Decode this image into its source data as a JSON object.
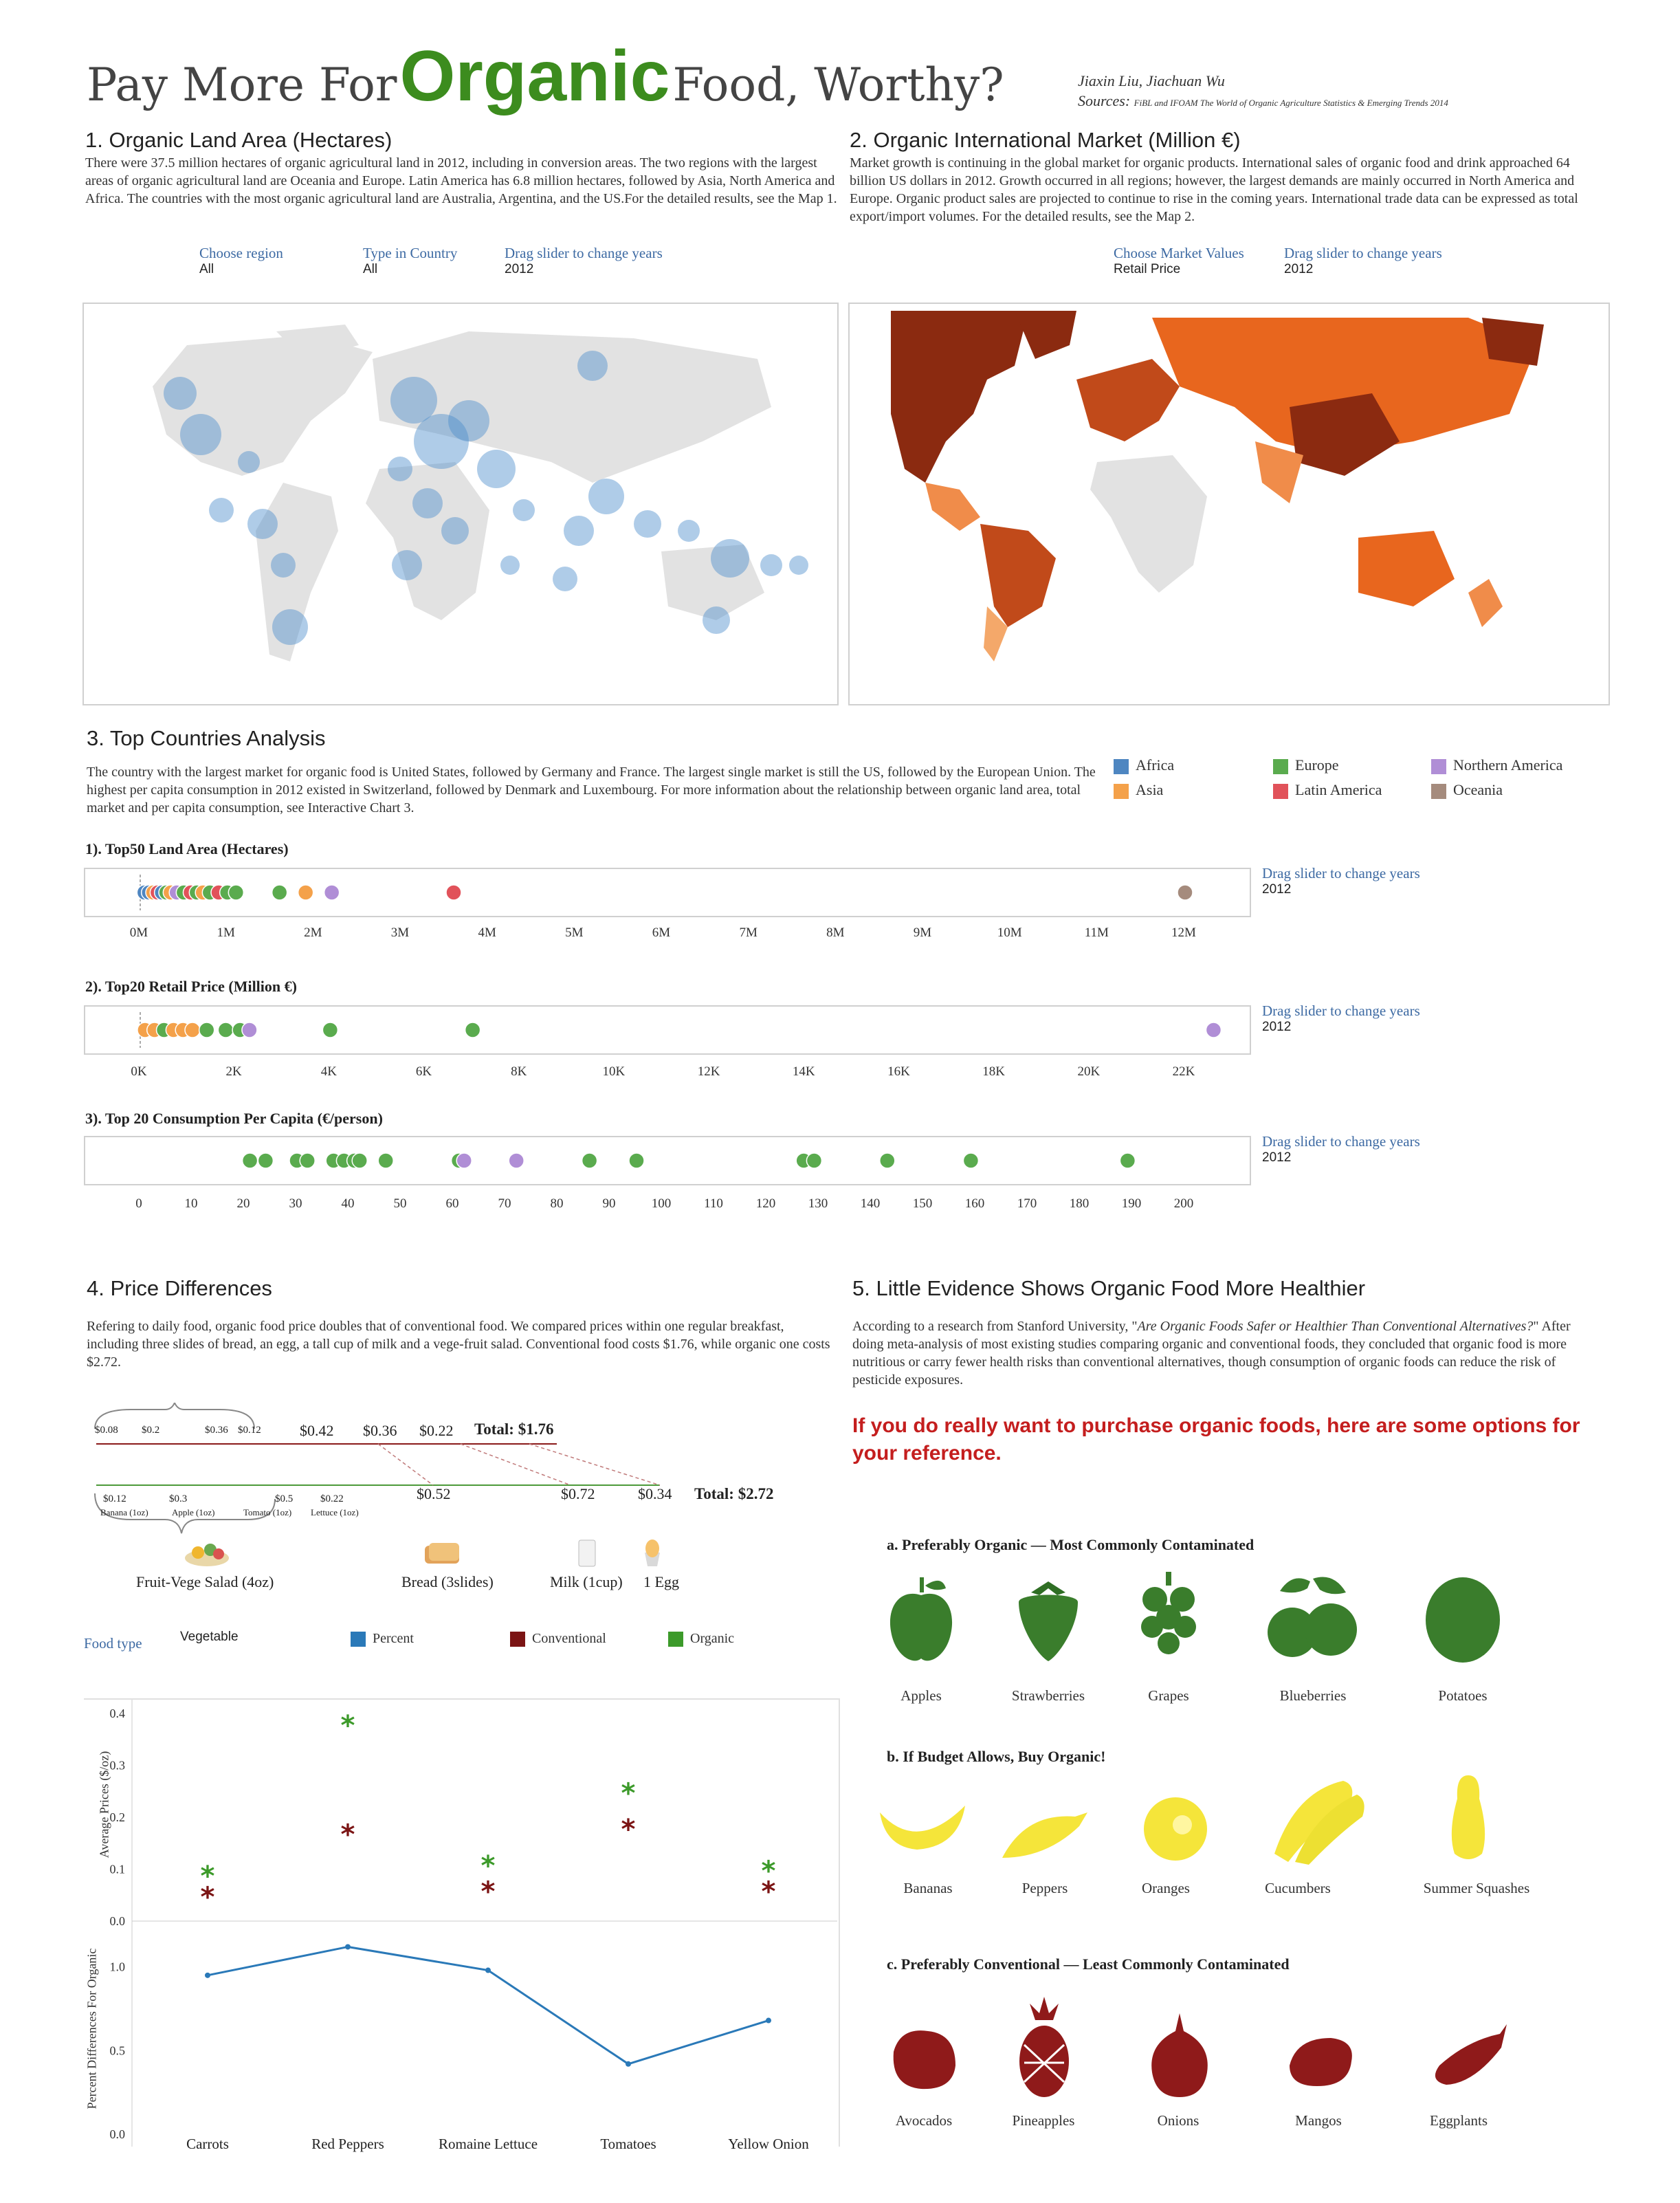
{
  "header": {
    "title_pre": "Pay More For",
    "title_key": "Organic",
    "title_post": "Food, Worthy?",
    "authors": "Jiaxin Liu, Jiachuan Wu",
    "sources_label": "Sources:",
    "sources_text": "FiBL and IFOAM The World of Organic Agriculture Statistics & Emerging Trends 2014"
  },
  "colors": {
    "title_green": "#3c8c1e",
    "blue_bubble": "#4e8fcc",
    "africa": "#4e86c1",
    "asia": "#f4a14a",
    "europe": "#5aab4e",
    "latin_america": "#e1525a",
    "northern_america": "#b08ed6",
    "oceania": "#a58b7d",
    "conventional": "#7b1414",
    "organic": "#3c9a2a",
    "percent": "#2a79b8",
    "red_callout": "#c41e1e"
  },
  "section1": {
    "heading": "1. Organic Land Area (Hectares)",
    "text": "There were 37.5 million hectares of organic agricultural land in 2012, including in conversion areas. The two regions with the largest areas of organic agricultural land are Oceania and Europe. Latin America has 6.8 million hectares, followed by Asia, North America and Africa. The countries with the most organic agricultural land are Australia, Argentina, and the US.For the detailed results, see the Map 1.",
    "controls": [
      {
        "label": "Choose region",
        "value": "All"
      },
      {
        "label": "Type in Country",
        "value": "All"
      },
      {
        "label": "Drag slider to change years",
        "value": "2012"
      }
    ]
  },
  "section2": {
    "heading": "2. Organic International Market (Million €)",
    "text": "Market growth is continuing in the global market for organic products. International sales of organic food and drink approached 64 billion US dollars in 2012. Growth occurred in all regions; however, the largest demands are mainly occurred in North America and Europe. Organic product sales are projected to continue to rise in the coming years. International trade data can be expressed as total export/import volumes. For the detailed results, see the Map 2.",
    "controls": [
      {
        "label": "Choose Market Values",
        "value": "Retail Price"
      },
      {
        "label": "Drag slider to change years",
        "value": "2012"
      }
    ]
  },
  "section3": {
    "heading": "3. Top Countries Analysis",
    "text": "The country with the largest market for organic food is United States, followed by Germany and France. The largest single market is still the US, followed by the European Union. The highest per capita consumption in 2012 existed in Switzerland, followed by Denmark and Luxembourg. For more information about the relationship between organic land area, total market and per capita consumption, see Interactive Chart 3.",
    "legend": [
      "Africa",
      "Asia",
      "Europe",
      "Latin America",
      "Northern America",
      "Oceania"
    ],
    "slider_label": "Drag slider to change years",
    "slider_value": "2012"
  },
  "section4": {
    "heading": "4. Price Differences",
    "text": "Refering to daily food, organic food price doubles that of conventional food. We compared prices within one regular breakfast, including three slides of bread, an egg, a tall cup of milk and a vege-fruit salad. Conventional food costs $1.76, while organic one costs $2.72.",
    "conv_small": [
      "$0.08",
      "$0.2",
      "$0.36",
      "$0.12"
    ],
    "conv_big": [
      "$0.42",
      "$0.36",
      "$0.22"
    ],
    "conv_total": "Total: $1.76",
    "org_small": [
      "$0.12",
      "$0.3",
      "$0.5",
      "$0.22"
    ],
    "org_small_items": [
      "Banana (1oz)",
      "Apple (1oz)",
      "Tomato (1oz)",
      "Lettuce (1oz)"
    ],
    "org_big": [
      "$0.52",
      "$0.72",
      "$0.34"
    ],
    "org_total": "Total: $2.72",
    "items": [
      "Fruit-Vege Salad (4oz)",
      "Bread (3slides)",
      "Milk (1cup)",
      "1 Egg"
    ],
    "food_type_label": "Food type",
    "food_type_value": "Vegetable",
    "legend": [
      "Percent",
      "Conventional",
      "Organic"
    ]
  },
  "section5": {
    "heading": "5. Little Evidence Shows Organic Food More Healthier",
    "text_pre": "According to a research from Stanford University, \"",
    "text_italic": "Are Organic Foods Safer or Healthier Than Conventional Alternatives?",
    "text_post": "\" After doing meta-analysis of most existing studies comparing organic and conventional foods, they concluded that organic food is more nutritious or carry fewer health risks than conventional alternatives, though consumption of organic foods can reduce the risk of pesticide exposures.",
    "callout": "If you do really want to purchase organic foods, here are some options for your reference.",
    "groups": [
      {
        "title": "a. Preferably Organic — Most Commonly Contaminated",
        "items": [
          "Apples",
          "Strawberries",
          "Grapes",
          "Blueberries",
          "Potatoes"
        ]
      },
      {
        "title": "b. If Budget Allows, Buy Organic!",
        "items": [
          "Bananas",
          "Peppers",
          "Oranges",
          "Cucumbers",
          "Summer Squashes"
        ]
      },
      {
        "title": "c. Preferably Conventional — Least Commonly Contaminated",
        "items": [
          "Avocados",
          "Pineapples",
          "Onions",
          "Mangos",
          "Eggplants"
        ]
      }
    ]
  },
  "chart_data": [
    {
      "type": "scatter",
      "title": "1). Top50 Land Area (Hectares)",
      "xlim": [
        0,
        12
      ],
      "tick_labels": [
        "0M",
        "1M",
        "2M",
        "3M",
        "4M",
        "5M",
        "6M",
        "7M",
        "8M",
        "9M",
        "10M",
        "11M",
        "12M"
      ],
      "points": [
        {
          "x": 0.05,
          "region": "Africa"
        },
        {
          "x": 0.1,
          "region": "Africa"
        },
        {
          "x": 0.15,
          "region": "Asia"
        },
        {
          "x": 0.2,
          "region": "Latin America"
        },
        {
          "x": 0.25,
          "region": "Africa"
        },
        {
          "x": 0.3,
          "region": "Europe"
        },
        {
          "x": 0.35,
          "region": "Asia"
        },
        {
          "x": 0.42,
          "region": "Northern America"
        },
        {
          "x": 0.5,
          "region": "Europe"
        },
        {
          "x": 0.58,
          "region": "Latin America"
        },
        {
          "x": 0.65,
          "region": "Europe"
        },
        {
          "x": 0.72,
          "region": "Asia"
        },
        {
          "x": 0.8,
          "region": "Europe"
        },
        {
          "x": 0.9,
          "region": "Latin America"
        },
        {
          "x": 1.0,
          "region": "Europe"
        },
        {
          "x": 1.1,
          "region": "Europe"
        },
        {
          "x": 1.6,
          "region": "Europe"
        },
        {
          "x": 1.9,
          "region": "Asia"
        },
        {
          "x": 2.2,
          "region": "Northern America"
        },
        {
          "x": 3.6,
          "region": "Latin America"
        },
        {
          "x": 12.0,
          "region": "Oceania"
        }
      ]
    },
    {
      "type": "scatter",
      "title": "2). Top20 Retail Price (Million €)",
      "xlim": [
        0,
        22
      ],
      "tick_labels": [
        "0K",
        "2K",
        "4K",
        "6K",
        "8K",
        "10K",
        "12K",
        "14K",
        "16K",
        "18K",
        "20K",
        "22K"
      ],
      "points": [
        {
          "x": 0.1,
          "region": "Asia"
        },
        {
          "x": 0.3,
          "region": "Asia"
        },
        {
          "x": 0.5,
          "region": "Europe"
        },
        {
          "x": 0.7,
          "region": "Asia"
        },
        {
          "x": 0.9,
          "region": "Asia"
        },
        {
          "x": 1.1,
          "region": "Asia"
        },
        {
          "x": 1.4,
          "region": "Europe"
        },
        {
          "x": 1.8,
          "region": "Europe"
        },
        {
          "x": 2.1,
          "region": "Europe"
        },
        {
          "x": 2.3,
          "region": "Northern America"
        },
        {
          "x": 4.0,
          "region": "Europe"
        },
        {
          "x": 7.0,
          "region": "Europe"
        },
        {
          "x": 22.6,
          "region": "Northern America"
        }
      ]
    },
    {
      "type": "scatter",
      "title": "3). Top 20 Consumption Per Capita (€/person)",
      "xlim": [
        0,
        200
      ],
      "tick_labels": [
        "0",
        "10",
        "20",
        "30",
        "40",
        "50",
        "60",
        "70",
        "80",
        "90",
        "100",
        "110",
        "120",
        "130",
        "140",
        "150",
        "160",
        "170",
        "180",
        "190",
        "200"
      ],
      "points": [
        {
          "x": 21,
          "region": "Europe"
        },
        {
          "x": 24,
          "region": "Europe"
        },
        {
          "x": 30,
          "region": "Europe"
        },
        {
          "x": 32,
          "region": "Europe"
        },
        {
          "x": 37,
          "region": "Europe"
        },
        {
          "x": 39,
          "region": "Europe"
        },
        {
          "x": 41,
          "region": "Europe"
        },
        {
          "x": 42,
          "region": "Europe"
        },
        {
          "x": 47,
          "region": "Europe"
        },
        {
          "x": 61,
          "region": "Europe"
        },
        {
          "x": 62,
          "region": "Northern America"
        },
        {
          "x": 72,
          "region": "Northern America"
        },
        {
          "x": 86,
          "region": "Europe"
        },
        {
          "x": 95,
          "region": "Europe"
        },
        {
          "x": 127,
          "region": "Europe"
        },
        {
          "x": 129,
          "region": "Europe"
        },
        {
          "x": 143,
          "region": "Europe"
        },
        {
          "x": 159,
          "region": "Europe"
        },
        {
          "x": 189,
          "region": "Europe"
        }
      ]
    },
    {
      "type": "scatter",
      "title": "",
      "ylabel": "Average Prices ($/oz)",
      "ylim": [
        0,
        0.4
      ],
      "y_ticks": [
        "0.0",
        "0.1",
        "0.2",
        "0.3",
        "0.4"
      ],
      "categories": [
        "Carrots",
        "Red Peppers",
        "Romaine Lettuce",
        "Tomatoes",
        "Yellow Onion"
      ],
      "series": [
        {
          "name": "Conventional",
          "values": [
            0.05,
            0.17,
            0.06,
            0.18,
            0.06
          ]
        },
        {
          "name": "Organic",
          "values": [
            0.09,
            0.38,
            0.11,
            0.25,
            0.1
          ]
        }
      ]
    },
    {
      "type": "line",
      "ylabel": "Percent Differences For Organic",
      "ylim": [
        0,
        1.2
      ],
      "y_ticks": [
        "0.0",
        "0.5",
        "1.0"
      ],
      "categories": [
        "Carrots",
        "Red Peppers",
        "Romaine Lettuce",
        "Tomatoes",
        "Yellow Onion"
      ],
      "series": [
        {
          "name": "Percent",
          "values": [
            0.95,
            1.12,
            0.98,
            0.42,
            0.68
          ]
        }
      ]
    }
  ]
}
